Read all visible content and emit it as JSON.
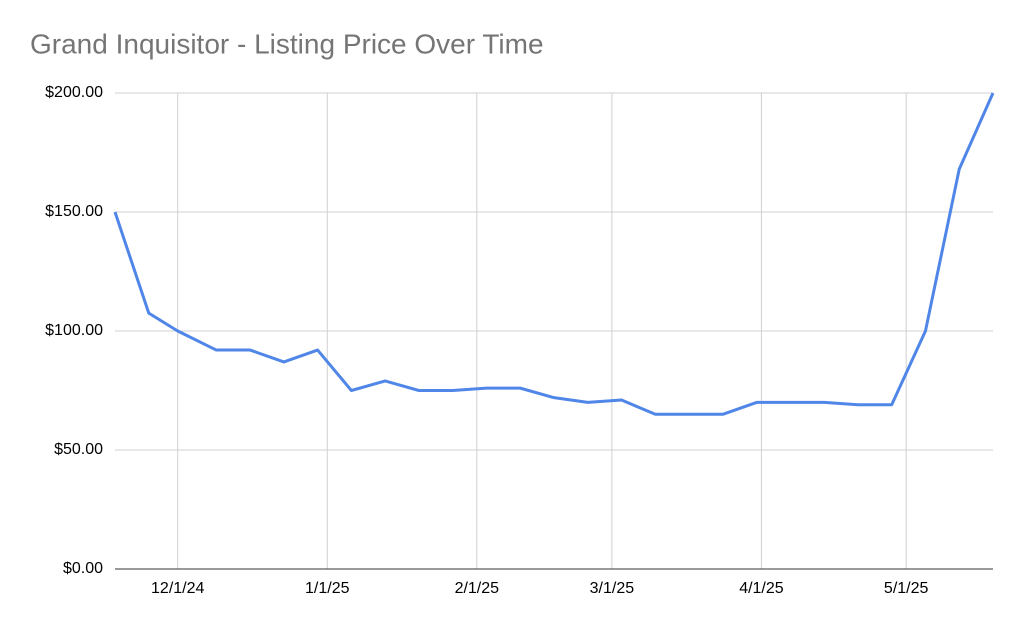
{
  "chart_data": {
    "type": "line",
    "title": "Grand Inquisitor - Listing Price Over Time",
    "x": [
      "11/18/24",
      "11/25/24",
      "12/1/24",
      "12/9/24",
      "12/16/24",
      "12/23/24",
      "12/30/24",
      "1/6/25",
      "1/13/25",
      "1/20/25",
      "1/27/25",
      "2/3/25",
      "2/10/25",
      "2/17/25",
      "2/24/25",
      "3/3/25",
      "3/10/25",
      "3/17/25",
      "3/24/25",
      "3/31/25",
      "4/7/25",
      "4/14/25",
      "4/21/25",
      "4/28/25",
      "5/5/25",
      "5/12/25",
      "5/19/25"
    ],
    "series": [
      {
        "name": "Price",
        "color": "#4f86e8",
        "values": [
          150,
          107.5,
          100,
          92,
          92,
          87,
          92,
          75,
          79,
          75,
          75,
          76,
          76,
          72,
          70,
          71,
          65,
          65,
          65,
          70,
          70,
          70,
          69,
          69,
          100,
          168,
          200
        ]
      }
    ],
    "xlim": [
      "11/18/24",
      "5/19/25"
    ],
    "xticks": [
      "12/1/24",
      "1/1/25",
      "2/1/25",
      "3/1/25",
      "4/1/25",
      "5/1/25"
    ],
    "ylim": [
      0,
      200
    ],
    "yticks": [
      {
        "value": 0,
        "label": "$0.00"
      },
      {
        "value": 50,
        "label": "$50.00"
      },
      {
        "value": 100,
        "label": "$100.00"
      },
      {
        "value": 150,
        "label": "$150.00"
      },
      {
        "value": 200,
        "label": "$200.00"
      }
    ],
    "grid": true
  }
}
